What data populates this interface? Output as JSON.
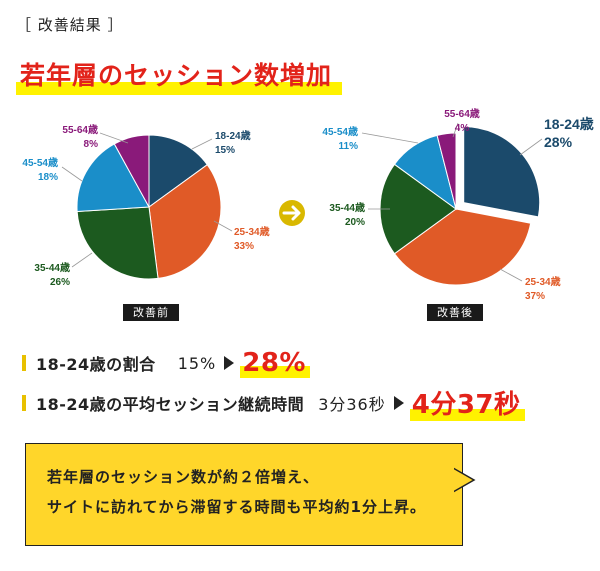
{
  "section_label": "［ 改善結果 ］",
  "headline": "若年層のセッション数増加",
  "arrow_icon": "arrow-right-icon",
  "chart_data": [
    {
      "type": "pie",
      "caption": "改善前",
      "slices": [
        {
          "label": "18-24歳",
          "pct_text": "15%",
          "value": 15,
          "color": "#1b4a6b"
        },
        {
          "label": "25-34歳",
          "pct_text": "33%",
          "value": 33,
          "color": "#e05a27"
        },
        {
          "label": "35-44歳",
          "pct_text": "26%",
          "value": 26,
          "color": "#1c5a1f"
        },
        {
          "label": "45-54歳",
          "pct_text": "18%",
          "value": 18,
          "color": "#1a8ec9"
        },
        {
          "label": "55-64歳",
          "pct_text": "8%",
          "value": 8,
          "color": "#8a1a7a"
        }
      ],
      "exploded_slice": null
    },
    {
      "type": "pie",
      "caption": "改善後",
      "slices": [
        {
          "label": "18-24歳",
          "pct_text": "28%",
          "value": 28,
          "color": "#1b4a6b"
        },
        {
          "label": "25-34歳",
          "pct_text": "37%",
          "value": 37,
          "color": "#e05a27"
        },
        {
          "label": "35-44歳",
          "pct_text": "20%",
          "value": 20,
          "color": "#1c5a1f"
        },
        {
          "label": "45-54歳",
          "pct_text": "11%",
          "value": 11,
          "color": "#1a8ec9"
        },
        {
          "label": "55-64歳",
          "pct_text": "4%",
          "value": 4,
          "color": "#8a1a7a"
        }
      ],
      "exploded_slice": "18-24歳"
    }
  ],
  "stats": [
    {
      "label": "18-24歳の割合",
      "before": "15%",
      "after": "28%"
    },
    {
      "label": "18-24歳の平均セッション継続時間",
      "before": "3分36秒",
      "after": "4分37秒"
    }
  ],
  "callout": {
    "line1": "若年層のセッション数が約２倍増え、",
    "line2": "サイトに訪れてから滞留する時間も平均約1分上昇。"
  }
}
